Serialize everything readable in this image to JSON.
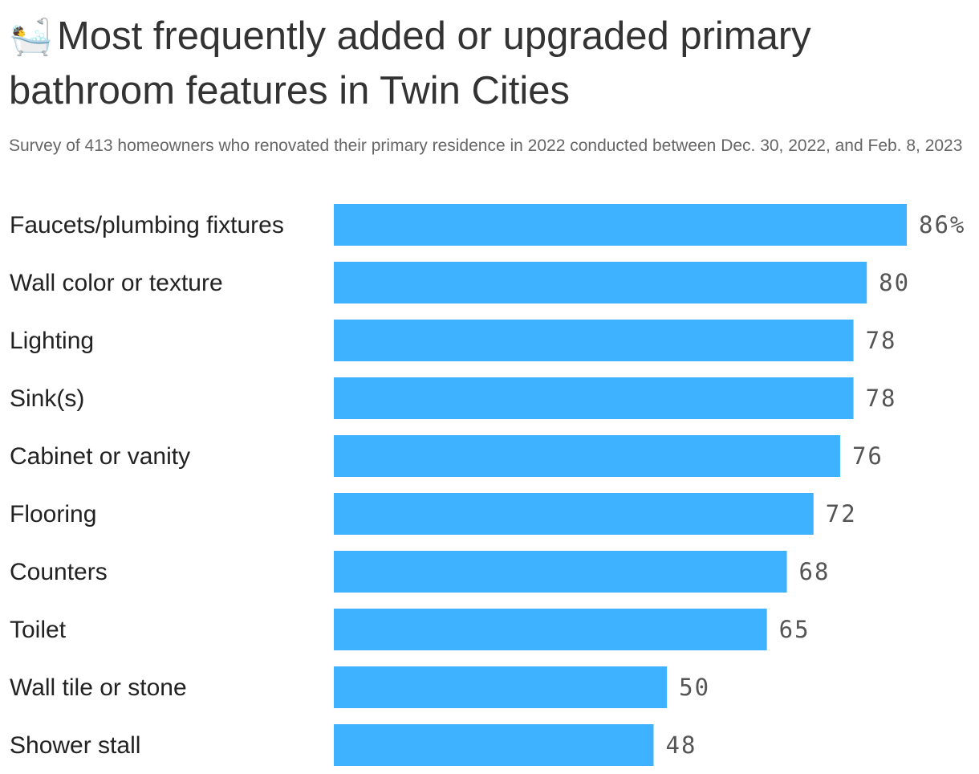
{
  "title": {
    "emoji": "🛀",
    "text": "Most frequently added or upgraded primary bathroom features in Twin Cities"
  },
  "subtitle": "Survey of 413 homeowners who renovated their primary residence in 2022 conducted between Dec. 30, 2022, and Feb. 8, 2023",
  "chart_data": {
    "type": "bar",
    "orientation": "horizontal",
    "title": "Most frequently added or upgraded primary bathroom features in Twin Cities",
    "subtitle": "Survey of 413 homeowners who renovated their primary residence in 2022 conducted between Dec. 30, 2022, and Feb. 8, 2023",
    "categories": [
      "Faucets/plumbing fixtures",
      "Wall color or texture",
      "Lighting",
      "Sink(s)",
      "Cabinet or vanity",
      "Flooring",
      "Counters",
      "Toilet",
      "Wall tile or stone",
      "Shower stall"
    ],
    "values": [
      86,
      80,
      78,
      78,
      76,
      72,
      68,
      65,
      50,
      48
    ],
    "value_labels": [
      "86%",
      "80",
      "78",
      "78",
      "76",
      "72",
      "68",
      "65",
      "50",
      "48"
    ],
    "unit": "%",
    "xlim": [
      0,
      86
    ],
    "grid": false,
    "legend": "none",
    "bar_color": "#3fb2ff"
  }
}
